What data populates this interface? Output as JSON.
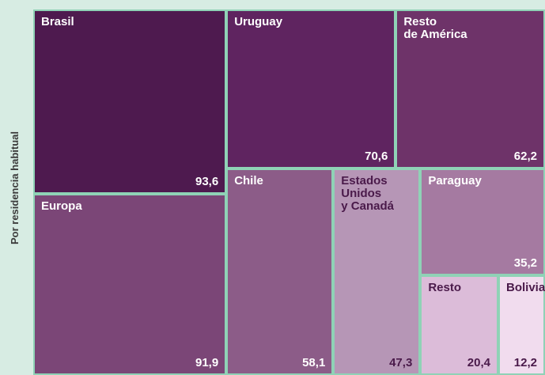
{
  "chart_data": {
    "type": "treemap",
    "y_label": "Por residencia habitual",
    "categories": [
      "Brasil",
      "Europa",
      "Uruguay",
      "Resto\nde América",
      "Chile",
      "Estados\nUnidos\ny Canadá",
      "Paraguay",
      "Resto",
      "Bolivia"
    ],
    "values": [
      93.6,
      91.9,
      70.6,
      62.2,
      58.1,
      47.3,
      35.2,
      20.4,
      12.2
    ],
    "value_labels": [
      "93,6",
      "91,9",
      "70,6",
      "62,2",
      "58,1",
      "47,3",
      "35,2",
      "20,4",
      "12,2"
    ],
    "colors": [
      "#4e1a4f",
      "#7b4677",
      "#5f2460",
      "#6e3369",
      "#8c5c88",
      "#b696b6",
      "#a57aa1",
      "#dcbcd9",
      "#f1dcee"
    ]
  }
}
